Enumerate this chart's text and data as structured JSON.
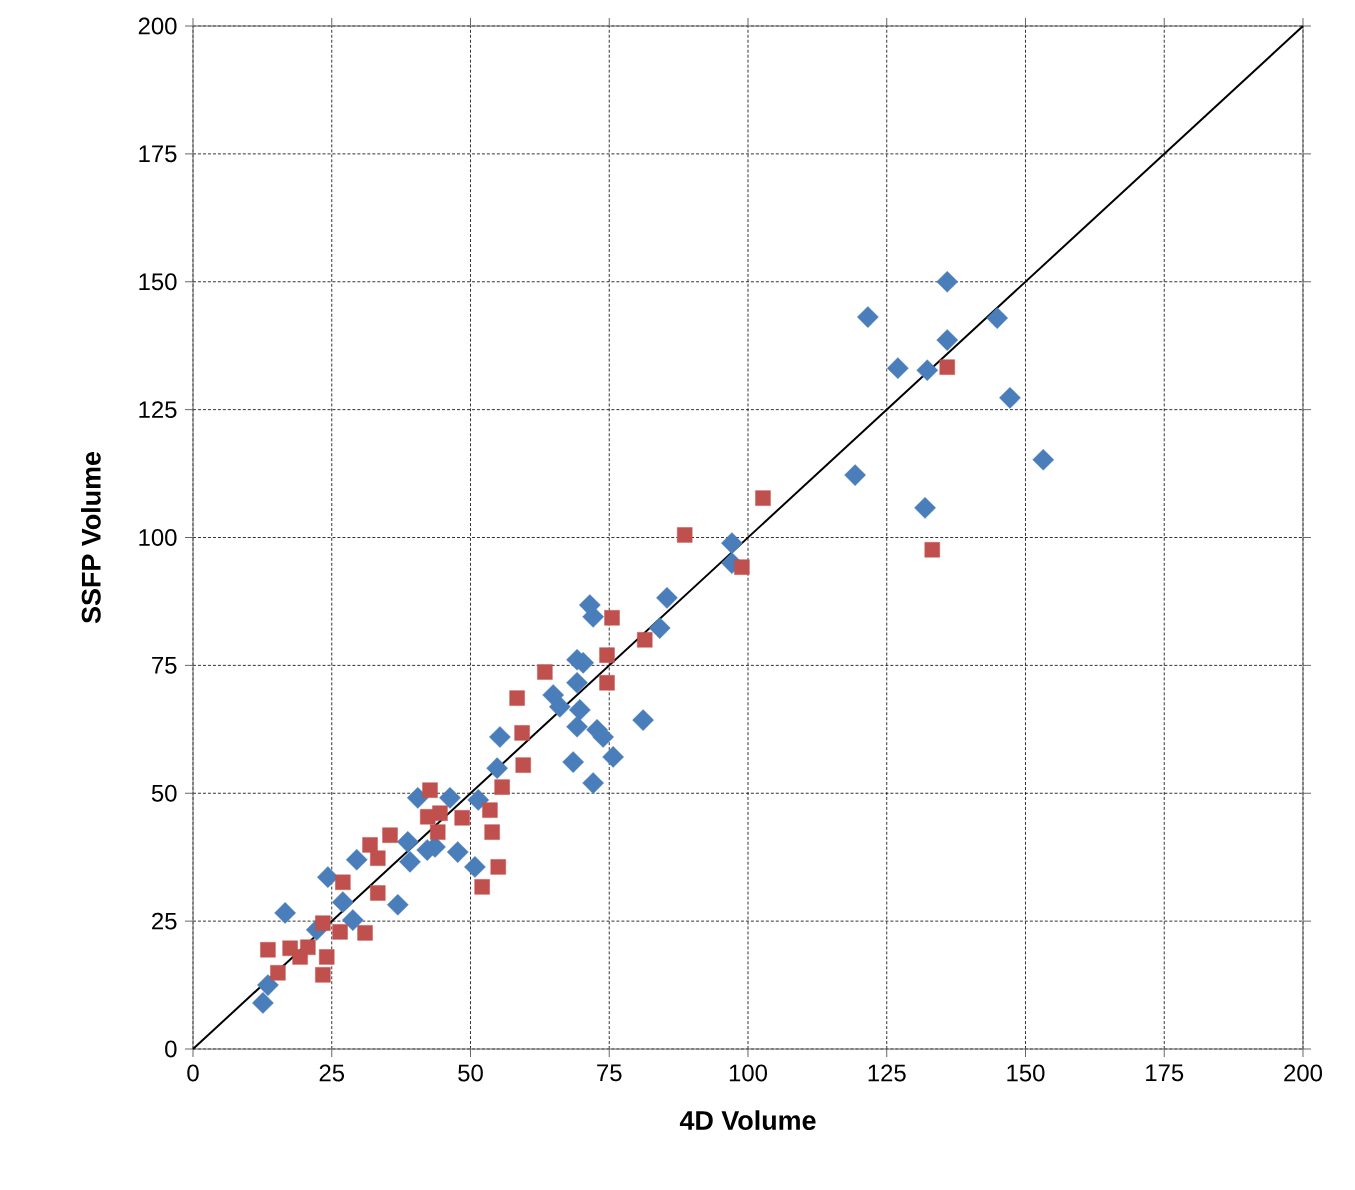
{
  "chart_data": {
    "type": "scatter",
    "xlabel": "4D Volume",
    "ylabel": "SSFP Volume",
    "xlim": [
      0,
      200
    ],
    "ylim": [
      0,
      200
    ],
    "xticks": [
      0,
      25,
      50,
      75,
      100,
      125,
      150,
      175,
      200
    ],
    "yticks": [
      0,
      25,
      50,
      75,
      100,
      125,
      150,
      175,
      200
    ],
    "grid": true,
    "series": [
      {
        "color": "#4a7ebb",
        "marker": "diamond",
        "x": [
          12.6,
          13.5,
          16.6,
          22.3,
          23.4,
          24.3,
          27,
          28.8,
          29.5,
          36.9,
          38.7,
          39.1,
          42.2,
          43.6,
          40.5,
          46.3,
          47.7,
          50.8,
          51.4,
          71.5,
          72.1,
          85.4,
          84.1,
          69.2,
          70.3,
          69.2,
          64.9,
          66.1,
          69.7,
          69.2,
          72.8,
          73.9,
          75.7,
          68.5,
          72.1,
          81.1,
          55.3,
          54.8,
          135.9,
          121.6,
          144.9,
          135.9,
          127,
          132.3,
          147.2,
          153.2,
          119.3,
          131.9,
          97.1,
          97.1
        ],
        "values": [
          9,
          12.5,
          26.6,
          23.3,
          null,
          33.6,
          28.7,
          25.2,
          37,
          28.2,
          40.5,
          36.6,
          38.9,
          39.5,
          49.1,
          49.1,
          38.5,
          35.6,
          48.7,
          86.8,
          84.5,
          88.2,
          82.3,
          76.1,
          75.5,
          71.6,
          69.2,
          66.9,
          66.3,
          63,
          62.4,
          61,
          57.1,
          56.1,
          52,
          64.3,
          61,
          54.9,
          150,
          143.1,
          142.9,
          138.6,
          133.1,
          132.7,
          127.3,
          115.2,
          112.2,
          105.8,
          98.9,
          95
        ]
      },
      {
        "color": "#c0504d",
        "marker": "square",
        "x": [
          88.6,
          102.7,
          135.9,
          133.2,
          98.9,
          75.5,
          74.6,
          74.6,
          81.4,
          63.4,
          58.4,
          59.3,
          59.5,
          55.7,
          42.7,
          53.5,
          53.9,
          55,
          42.3,
          44.5,
          48.5,
          52.1,
          35.5,
          31.9,
          33.3,
          33.3,
          27,
          44.1,
          26.5,
          31,
          23.4,
          13.5,
          17.5,
          19.3,
          20.7,
          15.3,
          23.4,
          24.1
        ],
        "values": [
          100.5,
          107.7,
          133.3,
          97.6,
          94.2,
          84.3,
          77,
          71.6,
          80,
          73.7,
          68.6,
          61.8,
          55.5,
          51.2,
          50.6,
          46.7,
          42.4,
          35.6,
          45.4,
          46.1,
          45.2,
          31.7,
          41.8,
          39.9,
          37.3,
          30.5,
          32.6,
          42.4,
          22.9,
          22.7,
          24.6,
          19.4,
          19.7,
          18,
          19.9,
          14.9,
          14.5,
          18
        ]
      },
      {
        "type": "line",
        "color": "#000000",
        "marker": "none",
        "x": [
          0,
          200
        ],
        "values": [
          0,
          200
        ]
      }
    ]
  }
}
